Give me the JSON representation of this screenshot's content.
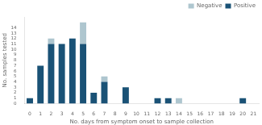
{
  "chart_data": {
    "type": "bar",
    "xlabel": "No. days from symptom onset to sample collection",
    "ylabel": "No. samples tested",
    "categories": [
      0,
      1,
      2,
      3,
      4,
      5,
      6,
      7,
      8,
      9,
      10,
      11,
      12,
      13,
      14,
      15,
      16,
      17,
      18,
      19,
      20,
      21
    ],
    "series": [
      {
        "name": "Positive",
        "color": "#1a5276",
        "values": [
          1,
          7,
          11,
          11,
          12,
          11,
          2,
          4,
          0,
          3,
          0,
          0,
          1,
          1,
          0,
          0,
          0,
          0,
          0,
          0,
          1,
          0
        ]
      },
      {
        "name": "Negative",
        "color": "#aec6cf",
        "values": [
          0,
          0,
          1,
          0,
          0,
          4,
          0,
          1,
          0,
          0,
          0,
          0,
          0,
          0,
          1,
          0,
          0,
          0,
          0,
          0,
          0,
          0
        ]
      }
    ],
    "stacked": true,
    "ylim": [
      0,
      16
    ],
    "yticks": [
      0,
      1,
      2,
      3,
      4,
      5,
      6,
      7,
      8,
      9,
      10,
      11,
      12,
      13,
      14
    ],
    "grid": false,
    "legend": "upper right"
  }
}
